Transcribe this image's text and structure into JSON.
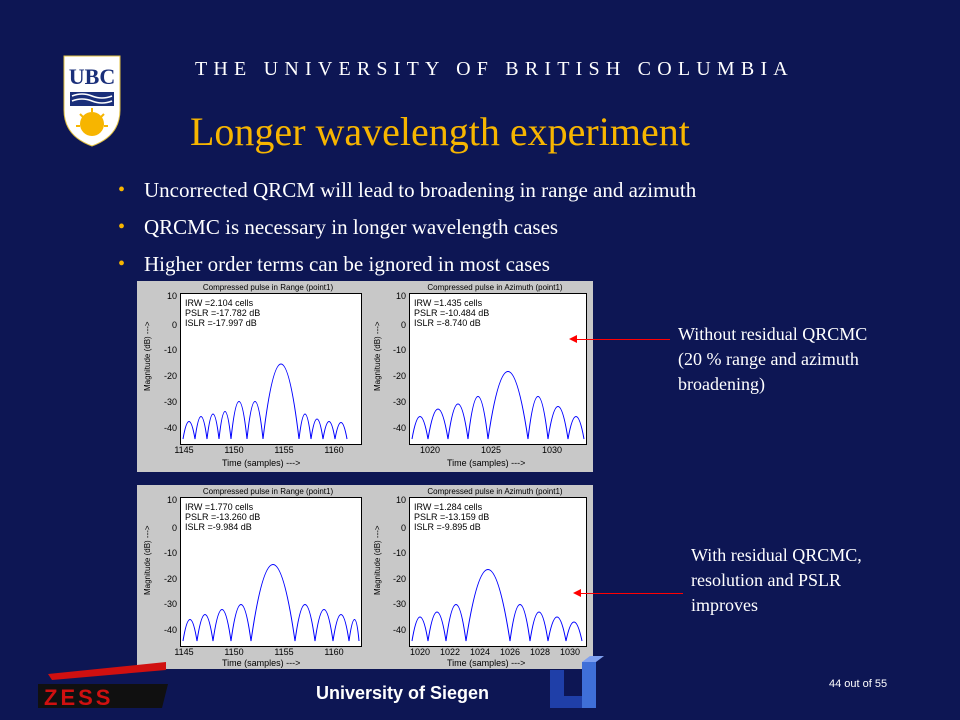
{
  "header": {
    "university": "THE UNIVERSITY OF BRITISH COLUMBIA",
    "logo_text": "UBC"
  },
  "slide": {
    "title": "Longer wavelength experiment"
  },
  "bullets": [
    "Uncorrected QRCM will lead to broadening in range and azimuth",
    "QRCMC is necessary in longer wavelength cases",
    "Higher order terms can be ignored in most cases"
  ],
  "notes": {
    "top": [
      "Without residual QRCMC",
      "(20 % range and azimuth",
      "broadening)"
    ],
    "bottom": [
      "With residual QRCMC,",
      "resolution and PSLR",
      "improves"
    ]
  },
  "plots": {
    "common": {
      "ylabel": "Magnitude (dB) --->",
      "xlabel": "Time (samples) --->"
    },
    "p1": {
      "title": "Compressed pulse in Range (point1)",
      "stats": [
        "IRW =2.104 cells",
        "PSLR =-17.782 dB",
        "ISLR =-17.997 dB"
      ],
      "yticks": [
        "10",
        "0",
        "-10",
        "-20",
        "-30",
        "-40"
      ],
      "xticks": [
        "1145",
        "1150",
        "1155",
        "1160"
      ]
    },
    "p2": {
      "title": "Compressed pulse in Azimuth (point1)",
      "stats": [
        "IRW =1.435 cells",
        "PSLR =-10.484 dB",
        "ISLR =-8.740 dB"
      ],
      "yticks": [
        "10",
        "0",
        "-10",
        "-20",
        "-30",
        "-40"
      ],
      "xticks": [
        "1020",
        "1025",
        "1030"
      ]
    },
    "p3": {
      "title": "Compressed pulse in Range (point1)",
      "stats": [
        "IRW =1.770 cells",
        "PSLR =-13.260 dB",
        "ISLR =-9.984 dB"
      ],
      "yticks": [
        "10",
        "0",
        "-10",
        "-20",
        "-30",
        "-40"
      ],
      "xticks": [
        "1145",
        "1150",
        "1155",
        "1160"
      ]
    },
    "p4": {
      "title": "Compressed pulse in Azimuth (point1)",
      "stats": [
        "IRW =1.284 cells",
        "PSLR =-13.159 dB",
        "ISLR =-9.895 dB"
      ],
      "yticks": [
        "10",
        "0",
        "-10",
        "-20",
        "-30",
        "-40"
      ],
      "xticks": [
        "1020",
        "1022",
        "1024",
        "1026",
        "1028",
        "1030"
      ]
    }
  },
  "footer": {
    "university": "University of Siegen",
    "page": "44 out of 55",
    "logo_text": "ZESS"
  },
  "colors": {
    "background": "#0d1654",
    "title": "#f7b500",
    "curve": "#0000ff",
    "arrow": "#ff0000"
  }
}
